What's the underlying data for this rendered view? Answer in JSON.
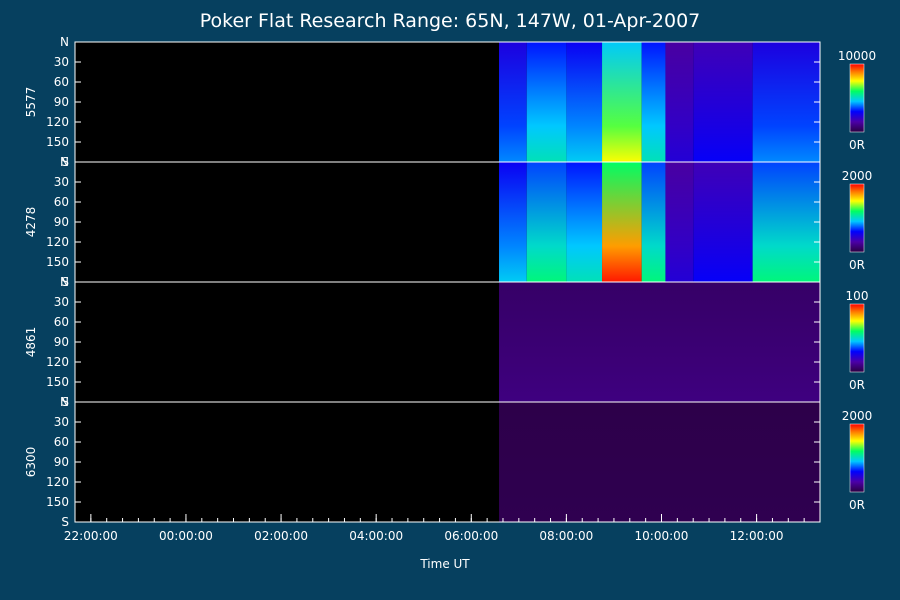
{
  "chart_data": {
    "type": "heatmap",
    "title": "Poker Flat Research Range: 65N, 147W, 01-Apr-2007",
    "xlabel": "Time UT",
    "x_tick_labels": [
      "22:00:00",
      "00:00:00",
      "02:00:00",
      "04:00:00",
      "06:00:00",
      "08:00:00",
      "10:00:00",
      "12:00:00"
    ],
    "y_tick_labels": [
      "N",
      "30",
      "60",
      "90",
      "120",
      "150",
      "S"
    ],
    "panels": [
      {
        "label": "5577",
        "colorbar_max": "10000",
        "colorbar_min": "0R",
        "data_start_time": "06:35",
        "intensity_blocks": [
          {
            "t0": "06:35",
            "t1": "07:10",
            "level": 0.35
          },
          {
            "t0": "07:10",
            "t1": "08:00",
            "level": 0.45
          },
          {
            "t0": "08:00",
            "t1": "08:45",
            "level": 0.4
          },
          {
            "t0": "08:45",
            "t1": "09:35",
            "level": 0.65
          },
          {
            "t0": "09:35",
            "t1": "10:05",
            "level": 0.45
          },
          {
            "t0": "10:05",
            "t1": "10:40",
            "level": 0.2
          },
          {
            "t0": "10:40",
            "t1": "11:55",
            "level": 0.25
          },
          {
            "t0": "11:55",
            "t1": "13:20",
            "level": 0.35
          }
        ]
      },
      {
        "label": "4278",
        "colorbar_max": "2000",
        "colorbar_min": "0R",
        "data_start_time": "06:35",
        "intensity_blocks": [
          {
            "t0": "06:35",
            "t1": "07:10",
            "level": 0.4
          },
          {
            "t0": "07:10",
            "t1": "08:00",
            "level": 0.5
          },
          {
            "t0": "08:00",
            "t1": "08:45",
            "level": 0.45
          },
          {
            "t0": "08:45",
            "t1": "09:35",
            "level": 0.85
          },
          {
            "t0": "09:35",
            "t1": "10:05",
            "level": 0.5
          },
          {
            "t0": "10:05",
            "t1": "10:40",
            "level": 0.2
          },
          {
            "t0": "10:40",
            "t1": "11:55",
            "level": 0.25
          },
          {
            "t0": "11:55",
            "t1": "13:20",
            "level": 0.5
          }
        ]
      },
      {
        "label": "4861",
        "colorbar_max": "100",
        "colorbar_min": "0R",
        "data_start_time": "06:35",
        "intensity_blocks": [
          {
            "t0": "06:35",
            "t1": "13:20",
            "level": 0.08
          }
        ]
      },
      {
        "label": "6300",
        "colorbar_max": "2000",
        "colorbar_min": "0R",
        "data_start_time": "06:35",
        "intensity_blocks": [
          {
            "t0": "06:35",
            "t1": "13:20",
            "level": 0.02
          }
        ]
      }
    ],
    "x_range": [
      "21:40",
      "13:20"
    ],
    "y_range": [
      0,
      180
    ],
    "colorbar": "rainbow"
  }
}
